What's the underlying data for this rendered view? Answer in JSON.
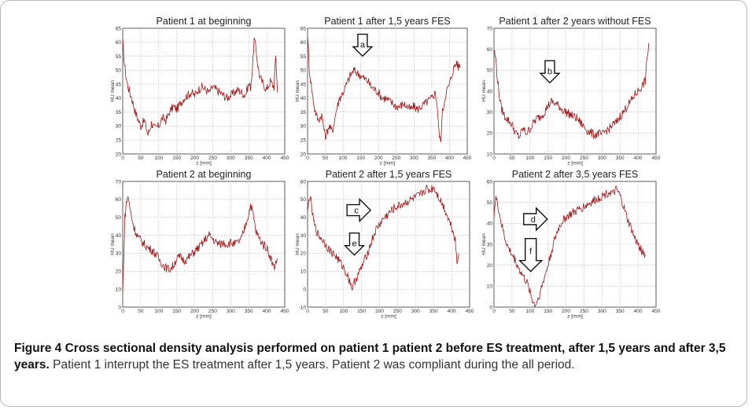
{
  "caption": {
    "bold": "Figure 4 Cross sectional density analysis performed on patient 1 patient 2 before ES treatment, after 1,5 years and after 3,5 years.",
    "text": " Patient 1 interrupt the ES treatment after 1,5 years. Patient 2 was compliant during the all period."
  },
  "chart_data": [
    {
      "type": "line",
      "title": "Patient 1 at beginning",
      "xlabel": "z [mm]",
      "ylabel": "HU mean",
      "xlim": [
        0,
        450
      ],
      "ylim": [
        20,
        65
      ],
      "xticks": [
        0,
        50,
        100,
        150,
        200,
        250,
        300,
        350,
        400,
        450
      ],
      "yticks": [
        20,
        25,
        30,
        35,
        40,
        45,
        50,
        55,
        60,
        65
      ],
      "grid": true,
      "x": [
        0,
        5,
        10,
        15,
        25,
        35,
        50,
        60,
        70,
        80,
        90,
        100,
        110,
        120,
        130,
        140,
        150,
        160,
        170,
        180,
        190,
        200,
        210,
        220,
        230,
        240,
        250,
        260,
        270,
        280,
        290,
        300,
        310,
        320,
        330,
        340,
        350,
        355,
        360,
        365,
        370,
        375,
        380,
        390,
        400,
        410,
        420,
        425,
        430
      ],
      "y": [
        60,
        52,
        47,
        44,
        40,
        35,
        30,
        32,
        27,
        31,
        29,
        30,
        33,
        32,
        35,
        37,
        36,
        38,
        40,
        41,
        42,
        41,
        43,
        44,
        43,
        42,
        44,
        43,
        42,
        41,
        40,
        41,
        42,
        43,
        42,
        41,
        45,
        44,
        50,
        61,
        58,
        52,
        48,
        45,
        43,
        46,
        44,
        55,
        42
      ],
      "annotations": []
    },
    {
      "type": "line",
      "title": "Patient 1 after 1,5 years FES",
      "xlabel": "z [mm]",
      "ylabel": "HU mean",
      "xlim": [
        0,
        450
      ],
      "ylim": [
        20,
        65
      ],
      "xticks": [
        0,
        50,
        100,
        150,
        200,
        250,
        300,
        350,
        400,
        450
      ],
      "yticks": [
        20,
        25,
        30,
        35,
        40,
        45,
        50,
        55,
        60,
        65
      ],
      "grid": true,
      "x": [
        0,
        5,
        10,
        15,
        20,
        30,
        40,
        50,
        60,
        70,
        80,
        90,
        100,
        110,
        120,
        130,
        140,
        150,
        160,
        170,
        180,
        190,
        200,
        210,
        220,
        230,
        240,
        250,
        260,
        270,
        280,
        290,
        300,
        310,
        320,
        330,
        340,
        350,
        360,
        365,
        370,
        375,
        380,
        390,
        400,
        410,
        420,
        425,
        430
      ],
      "y": [
        63,
        50,
        45,
        40,
        36,
        32,
        34,
        26,
        30,
        28,
        35,
        40,
        42,
        45,
        48,
        50,
        49,
        48,
        47,
        46,
        44,
        43,
        42,
        40,
        40,
        39,
        38,
        37,
        37,
        38,
        37,
        36,
        37,
        36,
        37,
        38,
        39,
        40,
        42,
        38,
        28,
        24,
        35,
        42,
        45,
        50,
        53,
        51,
        52
      ],
      "annotations": [
        {
          "label": "a",
          "x": 155,
          "y": 55
        }
      ]
    },
    {
      "type": "line",
      "title": "Patient 1 after 2 years without FES",
      "xlabel": "z [mm]",
      "ylabel": "HU mean",
      "xlim": [
        0,
        450
      ],
      "ylim": [
        10,
        70
      ],
      "xticks": [
        0,
        50,
        100,
        150,
        200,
        250,
        300,
        350,
        400,
        450
      ],
      "yticks": [
        10,
        20,
        30,
        40,
        50,
        60,
        70
      ],
      "grid": true,
      "x": [
        0,
        5,
        10,
        15,
        20,
        30,
        40,
        50,
        60,
        70,
        80,
        90,
        100,
        110,
        120,
        130,
        140,
        150,
        160,
        170,
        180,
        190,
        200,
        210,
        220,
        230,
        240,
        250,
        260,
        270,
        280,
        290,
        300,
        310,
        320,
        330,
        340,
        350,
        360,
        370,
        380,
        390,
        400,
        410,
        420,
        425,
        430
      ],
      "y": [
        60,
        55,
        45,
        38,
        32,
        28,
        26,
        24,
        20,
        18,
        22,
        20,
        22,
        25,
        27,
        28,
        30,
        33,
        35,
        34,
        33,
        31,
        30,
        29,
        28,
        27,
        25,
        23,
        21,
        20,
        19,
        20,
        19,
        21,
        22,
        24,
        25,
        28,
        30,
        33,
        35,
        38,
        40,
        42,
        45,
        55,
        63
      ],
      "annotations": [
        {
          "label": "b",
          "x": 155,
          "y": 44
        }
      ]
    },
    {
      "type": "line",
      "title": "Patient 2 at beginning",
      "xlabel": "z [mm]",
      "ylabel": "HU mean",
      "xlim": [
        0,
        450
      ],
      "ylim": [
        0,
        70
      ],
      "xticks": [
        0,
        50,
        100,
        150,
        200,
        250,
        300,
        350,
        400,
        450
      ],
      "yticks": [
        0,
        10,
        20,
        30,
        40,
        50,
        60,
        70
      ],
      "grid": true,
      "x": [
        0,
        3,
        6,
        10,
        15,
        20,
        30,
        40,
        50,
        60,
        70,
        80,
        90,
        100,
        110,
        120,
        130,
        140,
        150,
        160,
        170,
        180,
        190,
        200,
        210,
        220,
        230,
        240,
        250,
        260,
        270,
        280,
        290,
        300,
        310,
        320,
        330,
        340,
        350,
        355,
        360,
        365,
        370,
        380,
        390,
        400,
        410,
        420,
        430
      ],
      "y": [
        8,
        30,
        50,
        58,
        62,
        55,
        45,
        40,
        37,
        35,
        33,
        32,
        30,
        27,
        24,
        22,
        21,
        23,
        27,
        28,
        26,
        27,
        29,
        31,
        33,
        35,
        38,
        40,
        38,
        36,
        35,
        36,
        35,
        36,
        35,
        36,
        38,
        45,
        52,
        57,
        54,
        48,
        42,
        38,
        35,
        33,
        28,
        22,
        27
      ],
      "annotations": []
    },
    {
      "type": "line",
      "title": "Patient 2 after 1,5 years FES",
      "xlabel": "z [mm]",
      "ylabel": "HU mean",
      "xlim": [
        0,
        450
      ],
      "ylim": [
        -10,
        60
      ],
      "xticks": [
        0,
        50,
        100,
        150,
        200,
        250,
        300,
        350,
        400,
        450
      ],
      "yticks": [
        -10,
        0,
        10,
        20,
        30,
        40,
        50,
        60
      ],
      "grid": true,
      "x": [
        0,
        5,
        10,
        15,
        20,
        30,
        40,
        50,
        60,
        70,
        80,
        90,
        100,
        110,
        120,
        125,
        130,
        140,
        150,
        160,
        170,
        180,
        190,
        200,
        210,
        220,
        230,
        240,
        250,
        260,
        270,
        280,
        290,
        300,
        310,
        320,
        330,
        340,
        350,
        360,
        370,
        380,
        390,
        400,
        410,
        415,
        420
      ],
      "y": [
        42,
        52,
        48,
        40,
        35,
        30,
        28,
        25,
        22,
        20,
        18,
        15,
        12,
        8,
        3,
        0,
        4,
        8,
        12,
        17,
        22,
        28,
        33,
        36,
        39,
        41,
        43,
        45,
        46,
        47,
        48,
        49,
        50,
        51,
        52,
        54,
        56,
        55,
        57,
        53,
        49,
        45,
        40,
        35,
        28,
        14,
        20
      ],
      "annotations": [
        {
          "label": "c",
          "x": 175,
          "y": 44
        },
        {
          "label": "e",
          "x": 130,
          "y": 19
        }
      ]
    },
    {
      "type": "line",
      "title": "Patient 2 after 3,5 years FES",
      "xlabel": "z [mm]",
      "ylabel": "HU mean",
      "xlim": [
        0,
        450
      ],
      "ylim": [
        0,
        60
      ],
      "xticks": [
        0,
        50,
        100,
        150,
        200,
        250,
        300,
        350,
        400,
        450
      ],
      "yticks": [
        0,
        10,
        20,
        30,
        40,
        50,
        60
      ],
      "grid": true,
      "x": [
        0,
        5,
        10,
        15,
        20,
        30,
        40,
        50,
        60,
        70,
        80,
        90,
        100,
        105,
        110,
        115,
        120,
        130,
        140,
        150,
        160,
        170,
        180,
        190,
        200,
        210,
        220,
        230,
        240,
        250,
        260,
        270,
        280,
        290,
        300,
        310,
        320,
        330,
        340,
        350,
        360,
        370,
        380,
        390,
        400,
        410,
        420
      ],
      "y": [
        45,
        52,
        49,
        45,
        40,
        33,
        28,
        25,
        22,
        18,
        15,
        12,
        8,
        4,
        2,
        1,
        3,
        8,
        14,
        20,
        27,
        33,
        38,
        41,
        43,
        44,
        45,
        46,
        47,
        48,
        49,
        50,
        51,
        52,
        53,
        54,
        55,
        54,
        56,
        53,
        48,
        42,
        38,
        33,
        30,
        27,
        25
      ],
      "annotations": [
        {
          "label": "d",
          "x": 148,
          "y": 42
        },
        {
          "label": "f",
          "x": 102,
          "y": 17
        }
      ]
    }
  ]
}
